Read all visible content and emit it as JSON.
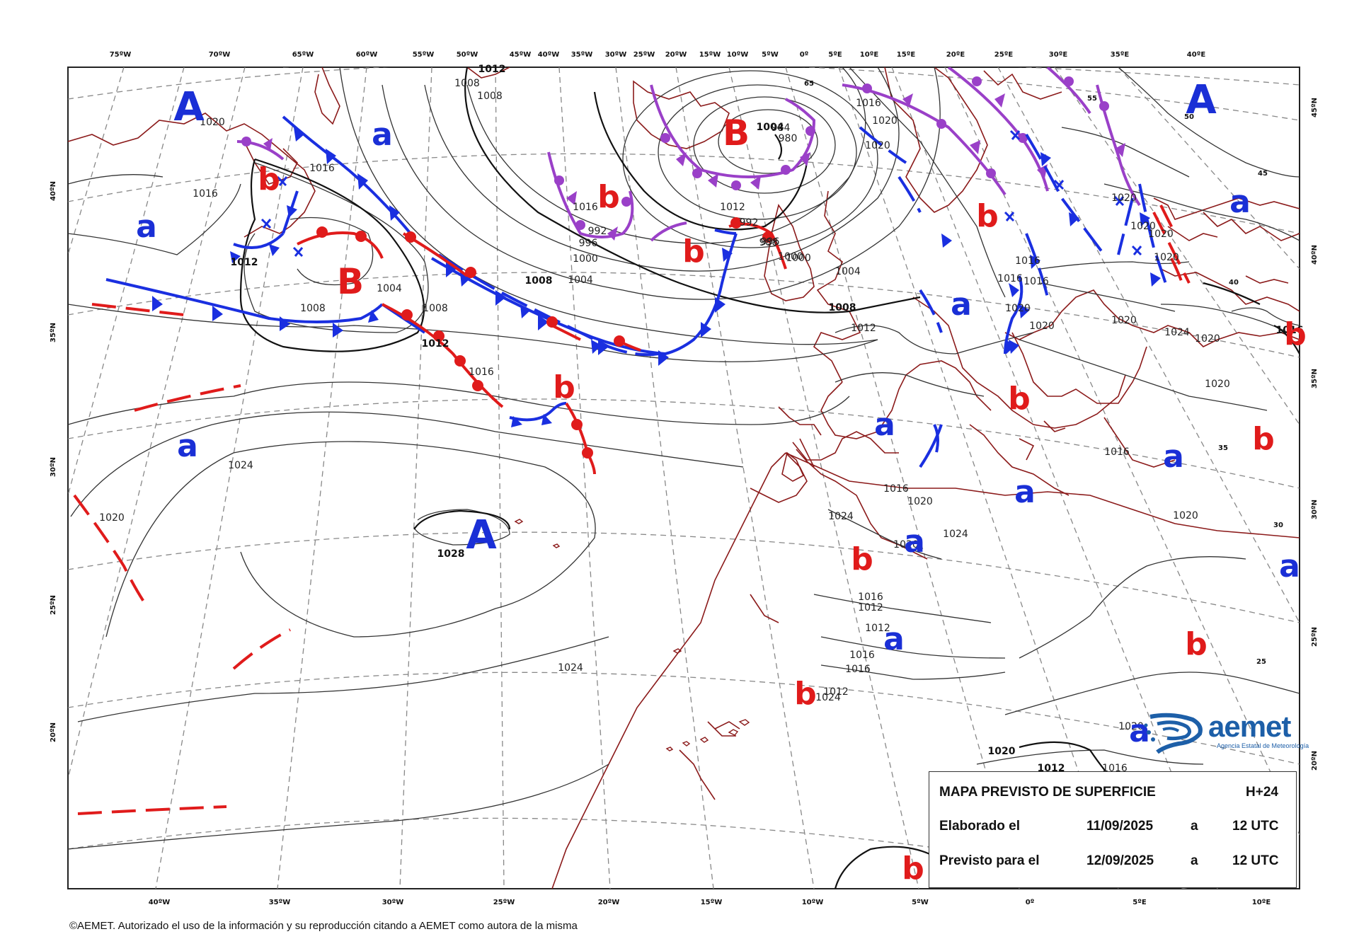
{
  "top_lon_labels": [
    "75ºW",
    "70ºW",
    "65ºW",
    "60ºW",
    "55ºW",
    "50ºW",
    "45ºW",
    "40ºW",
    "35ºW",
    "30ºW",
    "25ºW",
    "20ºW",
    "15ºW",
    "10ºW",
    "5ºW",
    "0º",
    "5ºE",
    "10ºE",
    "15ºE",
    "20ºE",
    "25ºE",
    "30ºE",
    "35ºE",
    "40ºE"
  ],
  "bottom_lon_labels": [
    "40ºW",
    "35ºW",
    "30ºW",
    "25ºW",
    "20ºW",
    "15ºW",
    "10ºW",
    "5ºW",
    "0º",
    "5ºE",
    "10ºE"
  ],
  "left_lat_labels": [
    "40ºN",
    "35ºN",
    "30ºN",
    "25ºN",
    "20ºN"
  ],
  "right_lat_labels": [
    "45ºN",
    "40ºN",
    "35ºN",
    "30ºN",
    "25ºN",
    "20ºN"
  ],
  "grid_lat_labels": [
    "65",
    "55",
    "50",
    "45",
    "40",
    "35",
    "30",
    "25"
  ],
  "isobar_labels": [
    "1012",
    "1008",
    "1008",
    "1020",
    "1016",
    "1016",
    "1012",
    "1004",
    "1008",
    "1008",
    "1012",
    "1016",
    "1024",
    "1020",
    "1028",
    "1024",
    "1016",
    "992",
    "996",
    "1000",
    "1004",
    "1008",
    "1012",
    "992",
    "996",
    "1000",
    "1004",
    "980",
    "984",
    "988",
    "1000",
    "1004",
    "1008",
    "1012",
    "1016",
    "1020",
    "1020",
    "1020",
    "1020",
    "1020",
    "1020",
    "1016",
    "1016",
    "1016",
    "1020",
    "1020",
    "1020",
    "1024",
    "1020",
    "1020",
    "1016",
    "1020",
    "1016",
    "1020",
    "1024",
    "1024",
    "1020",
    "1016",
    "1012",
    "1012",
    "1016",
    "1016",
    "1012",
    "1024",
    "1020",
    "1020",
    "1012",
    "1016",
    "1016"
  ],
  "pressure_centers": {
    "high_upper": "A",
    "low_upper": "B",
    "high_lower": "a",
    "low_lower": "b"
  },
  "legend": {
    "title": "MAPA PREVISTO DE SUPERFICIE",
    "horizon": "H+24",
    "row2_label": "Elaborado el",
    "row2_date": "11/09/2025",
    "row2_a": "a",
    "row2_time": "12 UTC",
    "row3_label": "Previsto para el",
    "row3_date": "12/09/2025",
    "row3_a": "a",
    "row3_time": "12 UTC"
  },
  "logo": {
    "word": "aemet",
    "subtitle": "Agencia Estatal de Meteorología"
  },
  "copyright": "©AEMET. Autorizado el uso de la información y su reproducción citando a AEMET como autora de la misma",
  "colors": {
    "high": "#1a2fd6",
    "low": "#e01b1b",
    "cold_front": "#1a2fe0",
    "warm_front": "#e01b1b",
    "occluded_front": "#9a40c8",
    "coast": "#8b1a1a",
    "grid": "#888888",
    "isobar": "#333333"
  }
}
